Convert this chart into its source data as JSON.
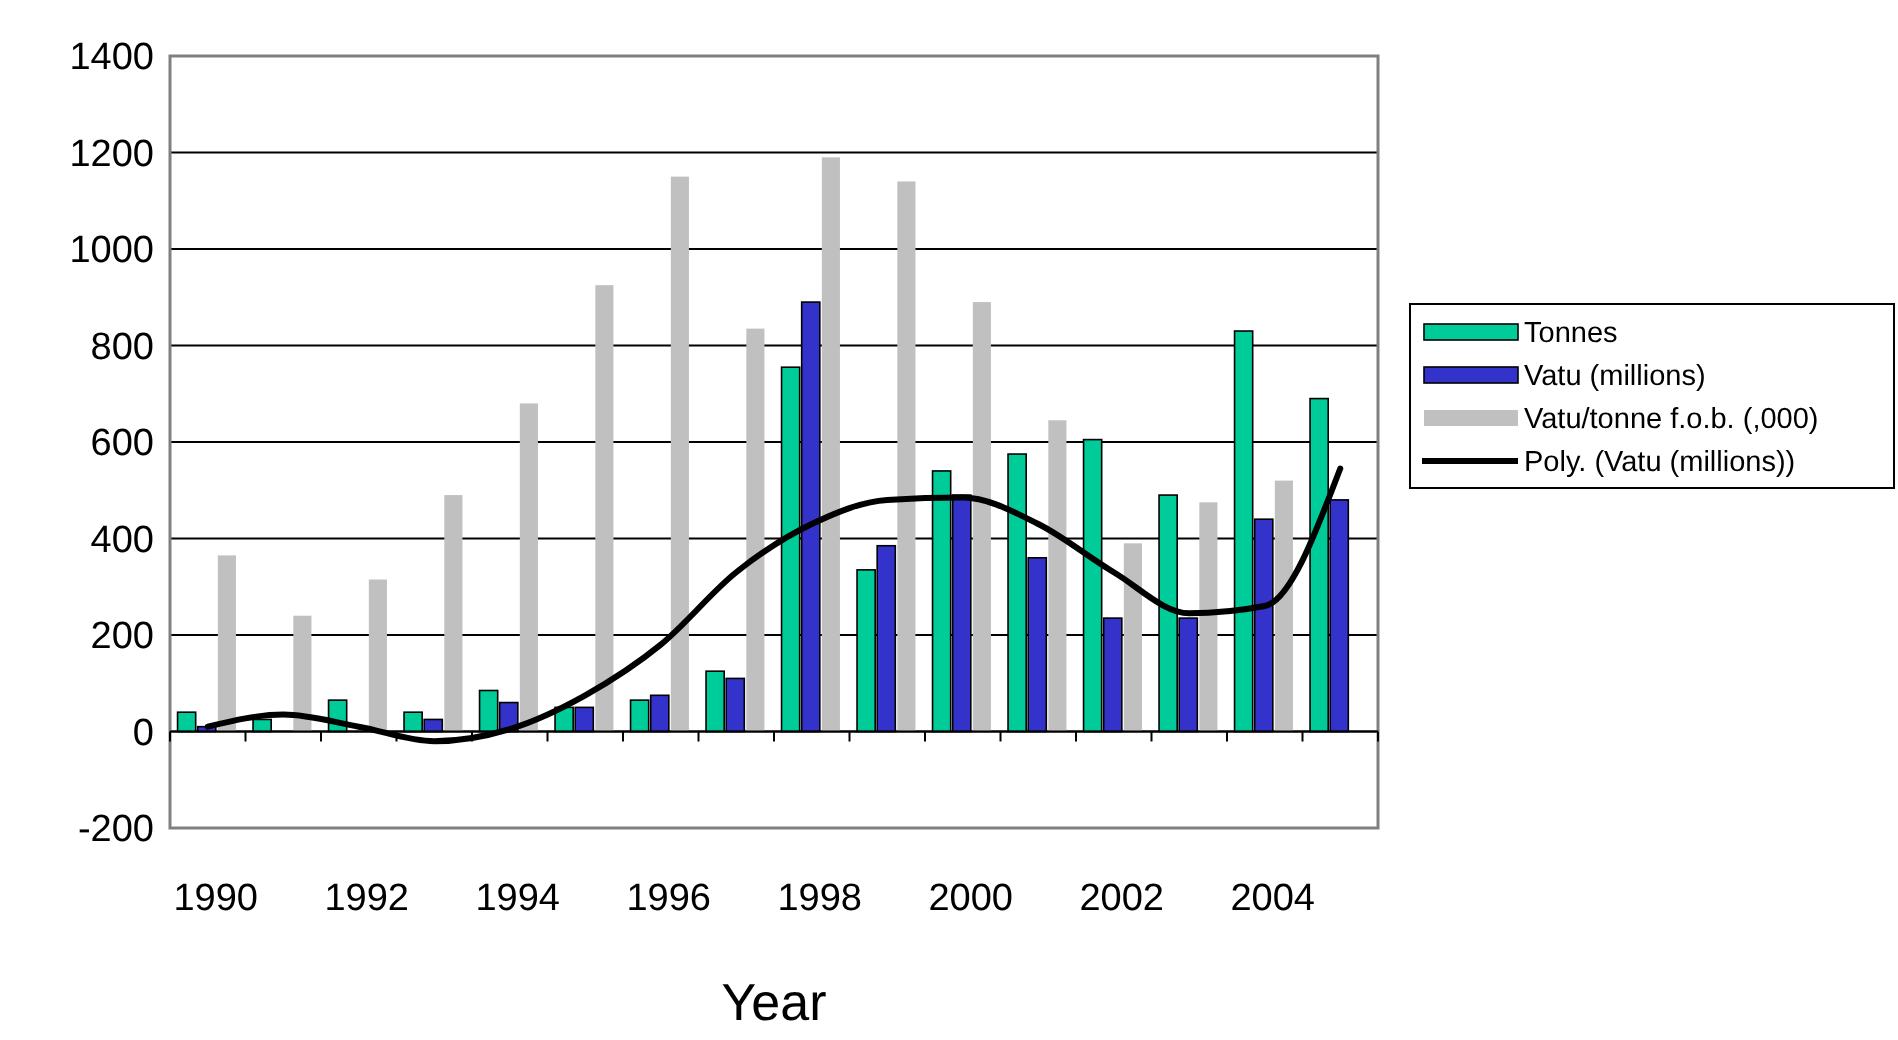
{
  "chart_data": {
    "type": "bar",
    "xlabel": "Year",
    "categories": [
      "1990",
      null,
      "1992",
      null,
      "1994",
      null,
      "1996",
      null,
      "1998",
      null,
      "2000",
      null,
      "2002",
      null,
      "2004",
      null
    ],
    "series": [
      {
        "name": "Tonnes",
        "color": "#00cc99",
        "values": [
          40,
          25,
          65,
          40,
          85,
          50,
          65,
          125,
          755,
          335,
          540,
          575,
          605,
          490,
          830,
          690
        ]
      },
      {
        "name": "Vatu (millions)",
        "color": "#3333cc",
        "values": [
          10,
          null,
          null,
          25,
          60,
          50,
          75,
          110,
          890,
          385,
          490,
          360,
          235,
          235,
          440,
          480
        ]
      },
      {
        "name": "Vatu/tonne f.o.b. (,000)",
        "color": "#c0c0c0",
        "values": [
          365,
          240,
          315,
          490,
          680,
          925,
          1150,
          835,
          1190,
          1140,
          890,
          645,
          390,
          475,
          520,
          null
        ]
      },
      {
        "name": "Poly. (Vatu (millions))",
        "type": "line",
        "color": "#000000",
        "values": [
          10,
          35,
          10,
          -20,
          5,
          75,
          180,
          330,
          430,
          480,
          485,
          430,
          330,
          245,
          260,
          545
        ]
      }
    ],
    "ylim": [
      -200,
      1400
    ],
    "yticks": [
      -200,
      0,
      200,
      400,
      600,
      800,
      1000,
      1200,
      1400
    ],
    "grid": "y",
    "legend": "right"
  }
}
